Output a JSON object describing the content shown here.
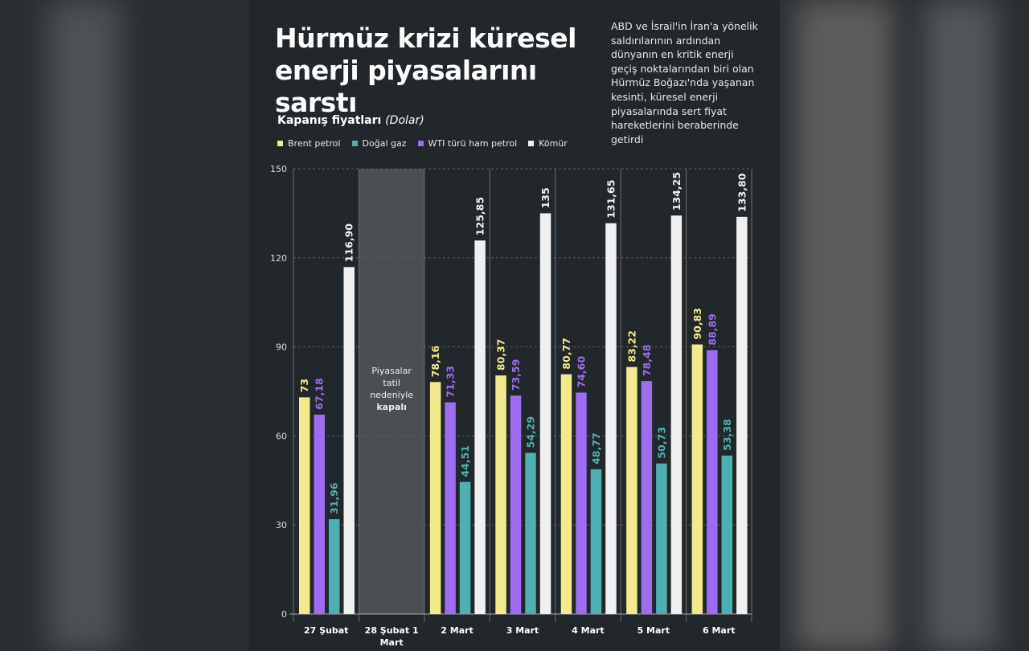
{
  "chart_data": {
    "type": "bar",
    "title": "Hürmüz krizi küresel enerji piyasalarını sarstı",
    "description": "ABD ve İsrail'in İran'a yönelik saldırılarının ardından dünyanın en kritik enerji geçiş noktalarından biri olan Hürmüz Boğazı'nda yaşanan kesinti, küresel enerji piyasalarında sert fiyat hareketlerini beraberinde getirdi",
    "subtitle": "Kapanış fiyatları",
    "unit": "(Dolar)",
    "categories": [
      "27 Şubat",
      "28 Şubat 1 Mart",
      "2 Mart",
      "3 Mart",
      "4 Mart",
      "5 Mart",
      "6 Mart"
    ],
    "annotation": [
      "Piyasalar",
      "tatil",
      "nedeniyle",
      "kapalı"
    ],
    "series": [
      {
        "name": "Brent petrol",
        "color": "#f3ea8c",
        "values": [
          73,
          null,
          78.16,
          80.37,
          80.77,
          83.22,
          90.83
        ],
        "value_labels": [
          "73",
          null,
          "78,16",
          "80,37",
          "80,77",
          "83,22",
          "90,83"
        ]
      },
      {
        "name": "Doğal gaz",
        "color": "#4fb0b3",
        "values": [
          31.96,
          null,
          44.51,
          54.29,
          48.77,
          50.73,
          53.38
        ],
        "value_labels": [
          "31,96",
          null,
          "44,51",
          "54,29",
          "48,77",
          "50,73",
          "53,38"
        ]
      },
      {
        "name": "WTI türü ham petrol",
        "color": "#9d6cf0",
        "values": [
          67.18,
          null,
          71.33,
          73.59,
          74.6,
          78.48,
          88.89
        ],
        "value_labels": [
          "67,18",
          null,
          "71,33",
          "73,59",
          "74,60",
          "78,48",
          "88,89"
        ]
      },
      {
        "name": "Kömür",
        "color": "#f0f0f0",
        "values": [
          116.9,
          null,
          125.85,
          135,
          131.65,
          134.25,
          133.8
        ],
        "value_labels": [
          "116,90",
          null,
          "125,85",
          "135",
          "131,65",
          "134,25",
          "133,80"
        ]
      }
    ],
    "ylim": [
      0,
      150
    ],
    "yticks": [
      0,
      30,
      60,
      90,
      120,
      150
    ],
    "grid": true
  }
}
